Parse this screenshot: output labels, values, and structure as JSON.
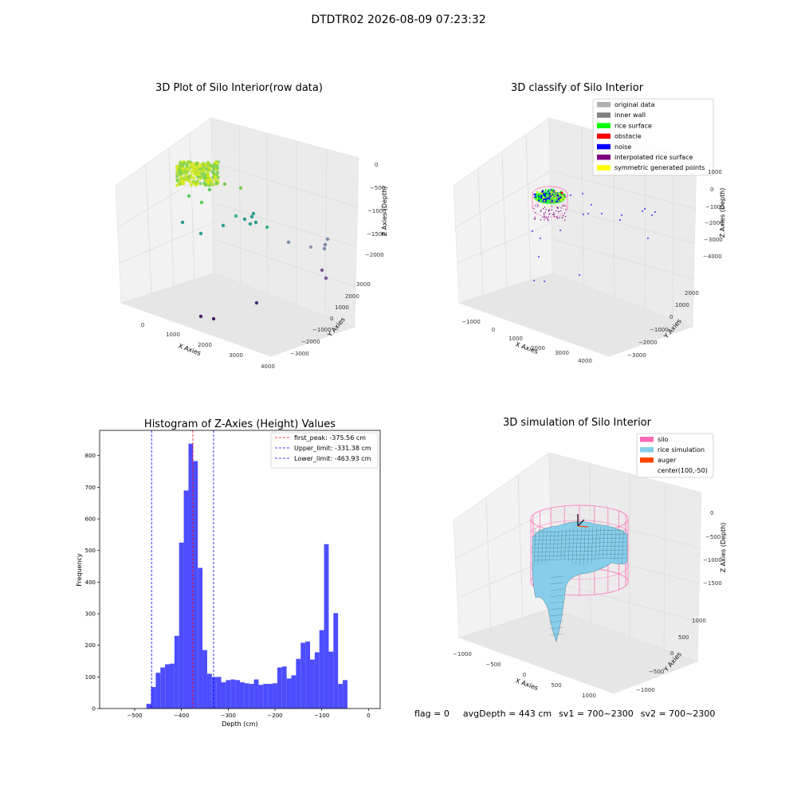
{
  "suptitle": "DTDTR02 2026-08-09 07:23:32",
  "footer": {
    "flag": "flag = 0",
    "avg_depth": "avgDepth = 443 cm",
    "sv1": "sv1 = 700~2300",
    "sv2": "sv2 = 700~2300"
  },
  "colors": {
    "hist_bar": "#4d4dff",
    "peak_line": "#ff0000",
    "limit_line": "#0000ff",
    "silo": "#ff69b4",
    "rice_simulation": "#87ceeb",
    "auger": "#ff4500",
    "original": "#b0b0b0",
    "inner_wall": "#808080",
    "rice_surface": "#00ff00",
    "obstacle": "#ff0000",
    "noise": "#0000ff",
    "interpolated": "#800080",
    "symmetric": "#ffff00"
  },
  "panels": {
    "raw": {
      "title": "3D Plot of Silo Interior(row data)",
      "xlabel": "X Axies",
      "ylabel": "Y Axies",
      "zlabel": "Z Axies (Depth)",
      "xticks": [
        "0",
        "1000",
        "2000",
        "3000",
        "4000"
      ],
      "yticks": [
        "3000",
        "2000",
        "1000",
        "0",
        "−1000",
        "−2000",
        "−3000"
      ],
      "zticks": [
        "0",
        "−500",
        "−1000",
        "−1500",
        "−2000"
      ]
    },
    "classify": {
      "title": "3D classify of Silo Interior",
      "legend": [
        "original data",
        "inner wall",
        "rice surface",
        "obstacle",
        "noise",
        "interpolated rice surface",
        "symmetric generated points"
      ],
      "legend_color_keys": [
        "original",
        "inner_wall",
        "rice_surface",
        "obstacle",
        "noise",
        "interpolated",
        "symmetric"
      ],
      "xlabel": "X Axies",
      "ylabel": "Y Axies",
      "zlabel": "Z Axies (Depth)",
      "xticks": [
        "−1000",
        "0",
        "1000",
        "2000",
        "3000",
        "4000"
      ],
      "yticks": [
        "2000",
        "1000",
        "0",
        "−1000",
        "−2000",
        "−3000"
      ],
      "zticks": [
        "1000",
        "0",
        "−1000",
        "−2000",
        "−3000",
        "−4000"
      ]
    },
    "simulation": {
      "title": "3D simulation of Silo Interior",
      "legend": [
        "silo",
        "rice simulation",
        "auger",
        "center(100,-50)"
      ],
      "legend_color_keys": [
        "silo",
        "rice_simulation",
        "auger",
        ""
      ],
      "xlabel": "X Axies",
      "ylabel": "Y Axies",
      "zlabel": "Z Axies (Depth)",
      "xticks": [
        "−1000",
        "−500",
        "0",
        "500",
        "1000"
      ],
      "yticks": [
        "1000",
        "500",
        "0",
        "−500",
        "−1000"
      ],
      "zticks": [
        "0",
        "−500",
        "−1000",
        "−1500"
      ]
    }
  },
  "chart_data": [
    {
      "type": "scatter",
      "title": "3D Plot of Silo Interior(row data)",
      "xlabel": "X Axies",
      "ylabel": "Y Axies",
      "zlabel": "Z Axies (Depth)"
    },
    {
      "type": "scatter",
      "title": "3D classify of Silo Interior",
      "series": [
        {
          "name": "original data"
        },
        {
          "name": "inner wall"
        },
        {
          "name": "rice surface"
        },
        {
          "name": "obstacle"
        },
        {
          "name": "noise"
        },
        {
          "name": "interpolated rice surface"
        },
        {
          "name": "symmetric generated points"
        }
      ]
    },
    {
      "type": "bar",
      "title": "Histogram of Z-Axies (Height) Values",
      "xlabel": "Depth (cm)",
      "ylabel": "Frequency",
      "xlim": [
        -575,
        25
      ],
      "ylim": [
        0,
        880
      ],
      "xticks": [
        -500,
        -400,
        -300,
        -200,
        -100,
        0
      ],
      "yticks": [
        0,
        100,
        200,
        300,
        400,
        500,
        600,
        700,
        800
      ],
      "bin_edges_start": -475,
      "bin_width": 10,
      "values": [
        15,
        68,
        113,
        130,
        140,
        142,
        230,
        525,
        690,
        838,
        783,
        445,
        185,
        110,
        100,
        100,
        83,
        90,
        92,
        90,
        83,
        80,
        78,
        92,
        75,
        78,
        78,
        80,
        130,
        133,
        95,
        105,
        157,
        208,
        212,
        155,
        178,
        248,
        520,
        180,
        302,
        78,
        90
      ],
      "vlines": [
        {
          "label": "first_peak: -375.56 cm",
          "x": -375.56,
          "color_key": "peak_line"
        },
        {
          "label": "Upper_limit: -331.38 cm",
          "x": -331.38,
          "color_key": "limit_line"
        },
        {
          "label": "Lower_limit: -463.93 cm",
          "x": -463.93,
          "color_key": "limit_line"
        }
      ]
    },
    {
      "type": "area",
      "title": "3D simulation of Silo Interior",
      "series": [
        {
          "name": "silo"
        },
        {
          "name": "rice simulation"
        },
        {
          "name": "auger"
        }
      ]
    }
  ]
}
